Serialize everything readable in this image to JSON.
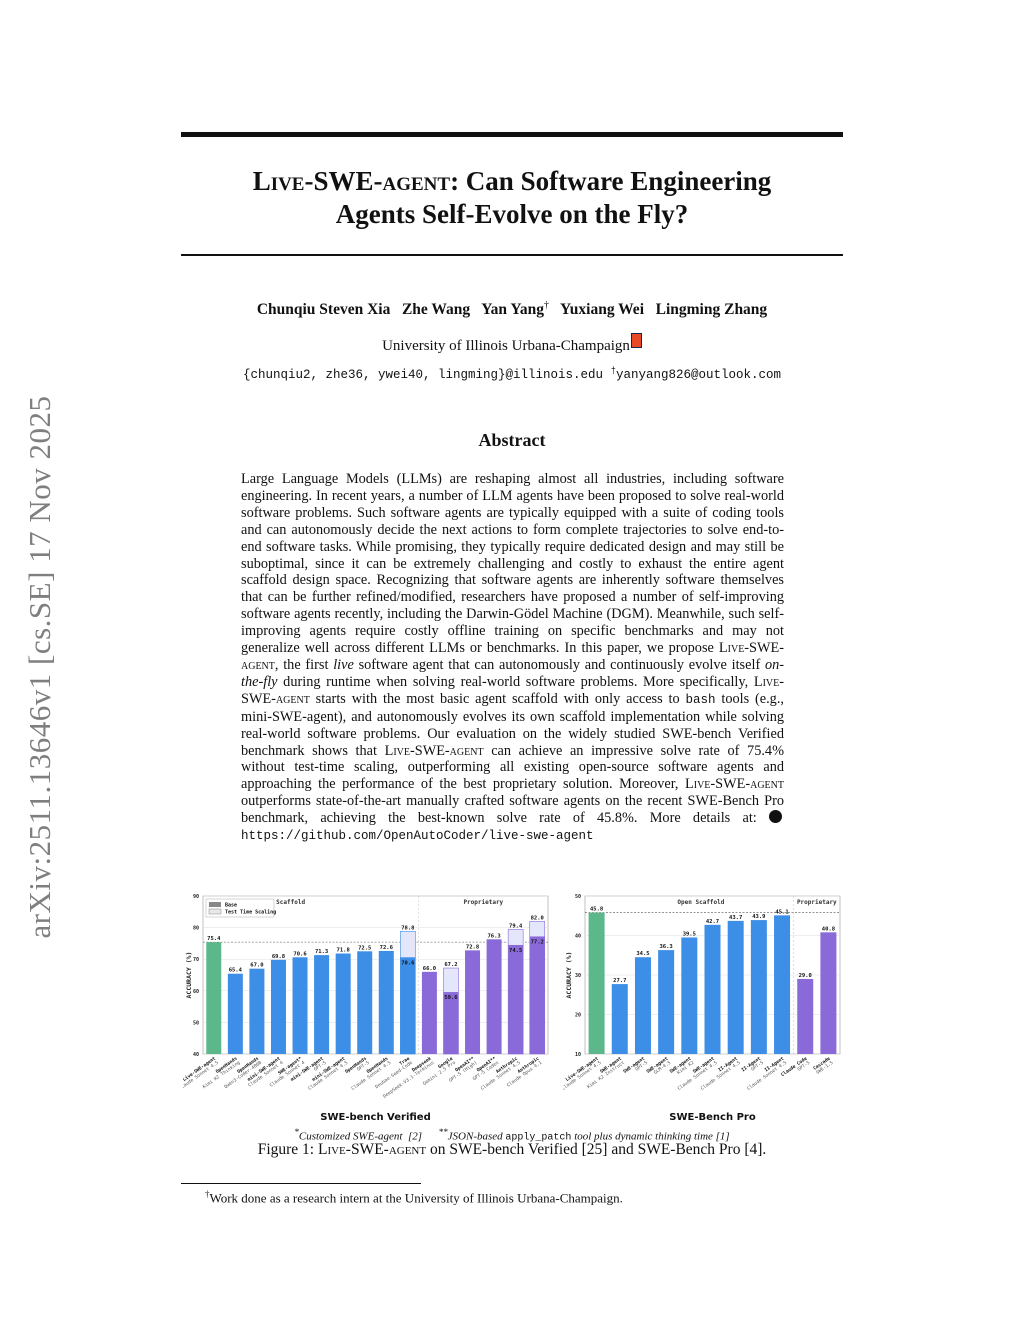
{
  "sidebar": {
    "arxiv_id": "arXiv:2511.13646v1  [cs.SE]  17 Nov 2025"
  },
  "title": {
    "name": "Live-SWE-agent",
    "rest_line1": ": Can Software Engineering",
    "line2": "Agents Self-Evolve on the Fly?"
  },
  "authors": {
    "list": "Chunqiu Steven Xia   Zhe Wang   Yan Yang",
    "dagger": "†",
    "list2": "   Yuxiang Wei   Lingming Zhang"
  },
  "affiliation": "University of Illinois Urbana-Champaign",
  "emails": {
    "main": "{chunqiu2, zhe36, ywei40, lingming}@illinois.edu",
    "dagger": "†",
    "other": "yanyang826@outlook.com"
  },
  "abstract": {
    "heading": "Abstract",
    "p1": "Large Language Models (LLMs) are reshaping almost all industries, including software engineering. In recent years, a number of LLM agents have been proposed to solve real-world software problems. Such software agents are typically equipped with a suite of coding tools and can autonomously decide the next actions to form complete trajectories to solve end-to-end software tasks. While promising, they typically require dedicated design and may still be suboptimal, since it can be extremely challenging and costly to exhaust the entire agent scaffold design space. Recognizing that software agents are inherently software themselves that can be further refined/modified, researchers have proposed a number of self-improving software agents recently, including the Darwin-Gödel Machine (DGM). Meanwhile, such self-improving agents require costly offline training on specific benchmarks and may not generalize well across different LLMs or benchmarks. In this paper, we propose ",
    "name": "Live-SWE-agent",
    "p2": ", the first ",
    "live": "live",
    "p3": " software agent that can autonomously and continuously evolve itself ",
    "otf": "on-the-fly",
    "p4": " during runtime when solving real-world software problems. More specifically, ",
    "p5": " starts with the most basic agent scaffold with only access to ",
    "bash": "bash",
    "p6": " tools (e.g., mini-SWE-agent), and autonomously evolves its own scaffold implementation while solving real-world software problems. Our evaluation on the widely studied SWE-bench Verified benchmark shows that ",
    "p7": " can achieve an impressive solve rate of 75.4% without test-time scaling, outperforming all existing open-source software agents and approaching the performance of the best proprietary solution. Moreover, ",
    "p8": " outperforms state-of-the-art manually crafted software agents on the recent SWE-Bench Pro benchmark, achieving the best-known solve rate of 45.8%. More details at: ",
    "url": "https://github.com/OpenAutoCoder/live-swe-agent"
  },
  "chart_data": [
    {
      "type": "bar",
      "title": "SWE-bench Verified",
      "ylabel": "ACCURACY (%)",
      "ylim": [
        40,
        90
      ],
      "yticks": [
        40,
        50,
        60,
        70,
        80,
        90
      ],
      "group_labels": [
        "Open Scaffold",
        "Proprietary"
      ],
      "legend": [
        "Base",
        "Test Time Scaling"
      ],
      "reference_line": 75.4,
      "categories": [
        {
          "label": "Live-SWE-agent",
          "sub": "Claude Sonnet 4.5",
          "value": 75.4,
          "tts": null,
          "group": "ours"
        },
        {
          "label": "OpenHands",
          "sub": "Kimi K2 Thinking",
          "value": 65.4,
          "tts": null,
          "group": "open"
        },
        {
          "label": "OpenHands",
          "sub": "Qwen3-Coder-480B",
          "value": 67.0,
          "tts": null,
          "group": "open"
        },
        {
          "label": "mini-SWE-agent",
          "sub": "Claude Sonnet 4",
          "value": 69.8,
          "tts": null,
          "group": "open"
        },
        {
          "label": "SWE-agent*",
          "sub": "Claude Sonnet 4",
          "value": 70.6,
          "tts": null,
          "group": "open"
        },
        {
          "label": "mini-SWE-agent",
          "sub": "GPT-5",
          "value": 71.3,
          "tts": null,
          "group": "open"
        },
        {
          "label": "mini-SWE-agent",
          "sub": "Claude Sonnet 4.5",
          "value": 71.8,
          "tts": null,
          "group": "open"
        },
        {
          "label": "OpenHands",
          "sub": "GPT-5",
          "value": 72.5,
          "tts": null,
          "group": "open"
        },
        {
          "label": "OpenHands",
          "sub": "Claude Sonnet 4.5",
          "value": 72.6,
          "tts": null,
          "group": "open"
        },
        {
          "label": "Trae",
          "sub": "Doubao-Seed-Code",
          "value": 70.6,
          "tts": 78.8,
          "group": "open"
        },
        {
          "label": "Deepseek",
          "sub": "DeepSeek-V3.1-Terminus",
          "value": 66.0,
          "tts": null,
          "group": "prop"
        },
        {
          "label": "Google",
          "sub": "Gemini 2.5 Pro",
          "value": 59.6,
          "tts": 67.2,
          "group": "prop"
        },
        {
          "label": "OpenAI**",
          "sub": "GPT-5 (High)",
          "value": 72.8,
          "tts": null,
          "group": "prop"
        },
        {
          "label": "OpenAI**",
          "sub": "GPT-5 Codex",
          "value": 76.3,
          "tts": null,
          "group": "prop"
        },
        {
          "label": "Anthropic",
          "sub": "Claude Sonnet 4.5",
          "value": 74.5,
          "tts": 79.4,
          "group": "prop"
        },
        {
          "label": "Anthropic",
          "sub": "Claude Opus 4.1",
          "value": 77.2,
          "tts": 82.0,
          "group": "prop"
        }
      ]
    },
    {
      "type": "bar",
      "title": "SWE-Bench Pro",
      "ylabel": "ACCURACY (%)",
      "ylim": [
        10,
        50
      ],
      "yticks": [
        10,
        20,
        30,
        40,
        50
      ],
      "group_labels": [
        "Open Scaffold",
        "Proprietary"
      ],
      "reference_line": 45.8,
      "categories": [
        {
          "label": "Live-SWE-agent",
          "sub": "Claude Sonnet 4.5",
          "value": 45.8,
          "group": "ours"
        },
        {
          "label": "SWE-agent",
          "sub": "Kimi K2 Instruct",
          "value": 27.7,
          "group": "open"
        },
        {
          "label": "SWE-agent",
          "sub": "GPT-5",
          "value": 34.5,
          "group": "open"
        },
        {
          "label": "SWE-agent",
          "sub": "GLM-4.5",
          "value": 36.3,
          "group": "open"
        },
        {
          "label": "SWE-agent",
          "sub": "Kimi K2",
          "value": 39.5,
          "group": "open"
        },
        {
          "label": "SWE-agent",
          "sub": "Claude Sonnet 4.5",
          "value": 42.7,
          "group": "open"
        },
        {
          "label": "II-Agent",
          "sub": "Claude Sonnet 4.5",
          "value": 43.7,
          "group": "open"
        },
        {
          "label": "II-Agent",
          "sub": "GPT-5",
          "value": 43.9,
          "group": "open"
        },
        {
          "label": "II-Agent",
          "sub": "Claude Sonnet 4.5",
          "value": 45.1,
          "group": "open"
        },
        {
          "label": "Claude Code",
          "sub": "GPT-5",
          "value": 29.0,
          "group": "prop"
        },
        {
          "label": "Cascade",
          "sub": "SWE-1.5",
          "value": 40.8,
          "group": "prop"
        }
      ]
    }
  ],
  "colors": {
    "ours": "#5cb88a",
    "open": "#3d8ee6",
    "prop": "#8a6ad8",
    "tts_fill": "#e4e6fb"
  },
  "notes": {
    "a_mark": "*",
    "a": "Customized SWE-agent  [2]",
    "b_mark": "**",
    "b_pre": "JSON-based ",
    "b_code": "apply_patch",
    "b_post": " tool plus dynamic thinking time [1]"
  },
  "caption": {
    "pre": "Figure 1: ",
    "name": "Live-SWE-agent",
    "post": " on SWE-bench Verified [25] and SWE-Bench Pro [4]."
  },
  "footnote": {
    "mark": "†",
    "text": "Work done as a research intern at the University of Illinois Urbana-Champaign."
  }
}
